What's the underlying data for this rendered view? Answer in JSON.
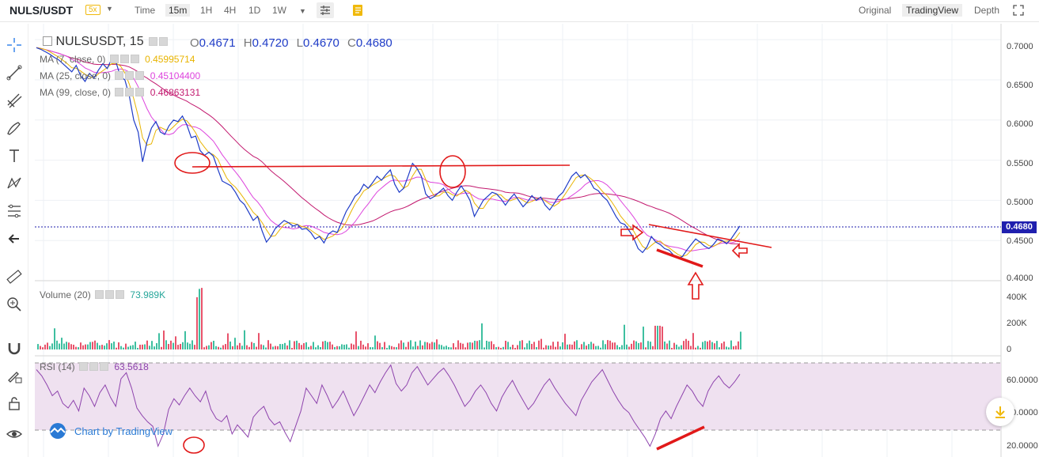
{
  "header": {
    "pair": "NULS/USDT",
    "leverage": "5x",
    "time_label": "Time",
    "intervals": [
      "15m",
      "1H",
      "4H",
      "1D",
      "1W"
    ],
    "active_interval": "15m",
    "views": [
      "Original",
      "TradingView",
      "Depth"
    ],
    "active_view": "TradingView"
  },
  "legend": {
    "symbol": "NULSUSDT, 15",
    "open_key": "O",
    "open": "0.4671",
    "high_key": "H",
    "high": "0.4720",
    "low_key": "L",
    "low": "0.4670",
    "close_key": "C",
    "close": "0.4680",
    "ma7_label": "MA (7, close, 0)",
    "ma7_value": "0.45995714",
    "ma25_label": "MA (25, close, 0)",
    "ma25_value": "0.45104400",
    "ma99_label": "MA (99, close, 0)",
    "ma99_value": "0.46863131",
    "volume_label": "Volume (20)",
    "volume_value": "73.989K",
    "rsi_label": "RSI (14)",
    "rsi_value": "63.5618"
  },
  "price_axis": [
    "0.7000",
    "0.6500",
    "0.6000",
    "0.5500",
    "0.5000",
    "0.4500",
    "0.4000"
  ],
  "current_price": "0.4680",
  "volume_axis": [
    "400K",
    "200K",
    "0"
  ],
  "rsi_axis": [
    "60.0000",
    "40.0000",
    "20.0000"
  ],
  "credit": "Chart by TradingView",
  "colors": {
    "price_line": "#1f3cc7",
    "ma7": "#e8b400",
    "ma25": "#dd44dd",
    "ma99": "#c2186e",
    "rsi_line": "#8e44ad",
    "annotation": "#e11919",
    "volume_up": "#3ebfa0",
    "volume_down": "#e8536b"
  },
  "icons": {
    "tools": [
      "crosshair-icon",
      "trend-line-icon",
      "pitchfork-icon",
      "brush-icon",
      "text-icon",
      "pattern-icon",
      "fib-icon",
      "back-arrow-icon",
      "ruler-icon",
      "zoom-icon",
      "magnet-icon",
      "lock-draw-icon",
      "lock-icon",
      "eye-icon"
    ],
    "download": "download-icon"
  },
  "chart_data": {
    "type": "line",
    "title": "NULSUSDT, 15",
    "price_range": [
      0.4,
      0.71
    ],
    "rsi_range": [
      15,
      80
    ],
    "current_price": 0.468,
    "price_series": [
      0.69,
      0.688,
      0.685,
      0.682,
      0.678,
      0.675,
      0.67,
      0.665,
      0.66,
      0.668,
      0.655,
      0.648,
      0.658,
      0.652,
      0.662,
      0.67,
      0.664,
      0.676,
      0.672,
      0.654,
      0.65,
      0.63,
      0.6,
      0.585,
      0.548,
      0.573,
      0.59,
      0.598,
      0.585,
      0.582,
      0.593,
      0.6,
      0.598,
      0.605,
      0.594,
      0.578,
      0.58,
      0.562,
      0.556,
      0.56,
      0.555,
      0.539,
      0.524,
      0.521,
      0.518,
      0.51,
      0.5,
      0.495,
      0.485,
      0.475,
      0.48,
      0.462,
      0.448,
      0.455,
      0.465,
      0.47,
      0.475,
      0.472,
      0.468,
      0.47,
      0.464,
      0.465,
      0.46,
      0.452,
      0.455,
      0.447,
      0.458,
      0.462,
      0.46,
      0.473,
      0.486,
      0.495,
      0.505,
      0.51,
      0.52,
      0.515,
      0.522,
      0.53,
      0.525,
      0.532,
      0.538,
      0.52,
      0.51,
      0.515,
      0.53,
      0.546,
      0.54,
      0.53,
      0.508,
      0.502,
      0.505,
      0.51,
      0.515,
      0.506,
      0.5,
      0.51,
      0.518,
      0.51,
      0.5,
      0.48,
      0.49,
      0.5,
      0.505,
      0.51,
      0.508,
      0.502,
      0.494,
      0.502,
      0.508,
      0.5,
      0.492,
      0.498,
      0.506,
      0.5,
      0.504,
      0.494,
      0.488,
      0.496,
      0.505,
      0.51,
      0.52,
      0.53,
      0.535,
      0.528,
      0.532,
      0.525,
      0.515,
      0.512,
      0.505,
      0.5,
      0.49,
      0.48,
      0.472,
      0.47,
      0.462,
      0.453,
      0.44,
      0.435,
      0.442,
      0.455,
      0.448,
      0.445,
      0.44,
      0.438,
      0.432,
      0.428,
      0.43,
      0.438,
      0.445,
      0.452,
      0.448,
      0.443,
      0.44,
      0.445,
      0.452,
      0.45,
      0.446,
      0.452,
      0.46,
      0.468
    ],
    "ma_series": [
      {
        "name": "MA (7, close, 0)",
        "value": 0.45995714
      },
      {
        "name": "MA (25, close, 0)",
        "value": 0.451044
      },
      {
        "name": "MA (99, close, 0)",
        "value": 0.46863131
      }
    ],
    "volume_latest": "73.989K",
    "rsi_latest": 63.5618,
    "rsi_series": [
      72,
      68,
      62,
      55,
      58,
      50,
      47,
      52,
      45,
      60,
      55,
      48,
      57,
      62,
      54,
      48,
      66,
      70,
      60,
      47,
      42,
      38,
      35,
      22,
      30,
      46,
      53,
      49,
      55,
      60,
      55,
      51,
      58,
      46,
      40,
      38,
      42,
      30,
      36,
      32,
      28,
      41,
      45,
      48,
      40,
      36,
      38,
      31,
      25,
      35,
      45,
      60,
      55,
      50,
      62,
      55,
      47,
      52,
      58,
      50,
      42,
      48,
      55,
      62,
      57,
      64,
      70,
      75,
      63,
      58,
      62,
      70,
      74,
      68,
      62,
      66,
      70,
      73,
      68,
      62,
      55,
      48,
      52,
      58,
      62,
      57,
      50,
      45,
      54,
      60,
      65,
      58,
      52,
      46,
      50,
      56,
      62,
      66,
      60,
      55,
      50,
      46,
      42,
      52,
      58,
      64,
      68,
      72,
      65,
      58,
      52,
      47,
      44,
      38,
      33,
      28,
      22,
      30,
      40,
      45,
      40,
      48,
      55,
      62,
      58,
      52,
      48,
      58,
      64,
      68,
      63,
      60,
      64,
      69
    ]
  }
}
